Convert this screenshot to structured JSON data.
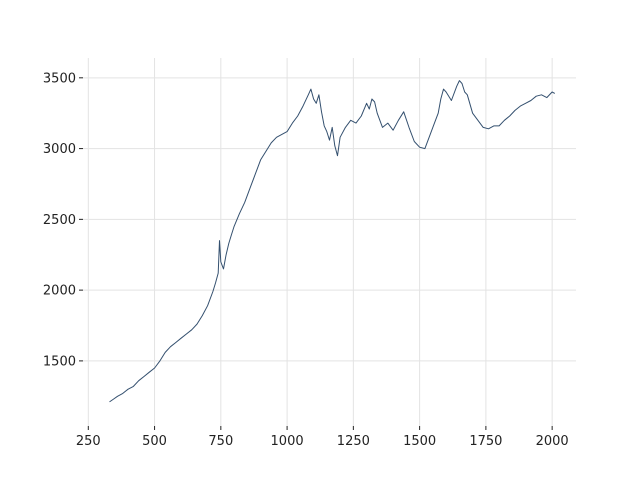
{
  "chart_data": {
    "type": "line",
    "title": "",
    "xlabel": "",
    "ylabel": "",
    "xlim": [
      230,
      2090
    ],
    "ylim": [
      1040,
      3640
    ],
    "grid": true,
    "x_ticks": [
      250,
      500,
      750,
      1000,
      1250,
      1500,
      1750,
      2000
    ],
    "y_ticks": [
      1500,
      2000,
      2500,
      3000,
      3500
    ],
    "x_tick_labels": [
      "250",
      "500",
      "750",
      "1000",
      "1250",
      "1500",
      "1750",
      "2000"
    ],
    "y_tick_labels": [
      "1500",
      "2000",
      "2500",
      "3000",
      "3500"
    ],
    "series": [
      {
        "color": "#34506f",
        "x": [
          330,
          345,
          360,
          380,
          400,
          420,
          440,
          460,
          480,
          500,
          520,
          540,
          560,
          580,
          600,
          620,
          640,
          660,
          680,
          700,
          720,
          730,
          740,
          745,
          750,
          760,
          770,
          780,
          790,
          800,
          820,
          840,
          860,
          880,
          900,
          920,
          940,
          960,
          980,
          1000,
          1020,
          1040,
          1060,
          1080,
          1090,
          1100,
          1110,
          1120,
          1130,
          1140,
          1150,
          1160,
          1170,
          1180,
          1190,
          1200,
          1220,
          1240,
          1260,
          1280,
          1300,
          1310,
          1320,
          1330,
          1340,
          1360,
          1380,
          1400,
          1420,
          1440,
          1460,
          1480,
          1500,
          1520,
          1540,
          1560,
          1570,
          1580,
          1590,
          1600,
          1620,
          1640,
          1650,
          1660,
          1670,
          1680,
          1700,
          1720,
          1740,
          1760,
          1780,
          1800,
          1820,
          1840,
          1860,
          1880,
          1900,
          1920,
          1940,
          1960,
          1980,
          2000,
          2010
        ],
        "y": [
          1210,
          1230,
          1250,
          1270,
          1300,
          1320,
          1360,
          1390,
          1420,
          1450,
          1500,
          1560,
          1600,
          1630,
          1660,
          1690,
          1720,
          1760,
          1820,
          1890,
          1990,
          2050,
          2120,
          2350,
          2200,
          2150,
          2250,
          2330,
          2390,
          2450,
          2540,
          2620,
          2720,
          2820,
          2920,
          2980,
          3040,
          3080,
          3100,
          3120,
          3180,
          3230,
          3300,
          3380,
          3420,
          3350,
          3320,
          3380,
          3260,
          3160,
          3120,
          3060,
          3150,
          3020,
          2950,
          3080,
          3150,
          3200,
          3180,
          3230,
          3320,
          3280,
          3350,
          3330,
          3250,
          3150,
          3180,
          3130,
          3200,
          3260,
          3150,
          3050,
          3010,
          3000,
          3100,
          3200,
          3250,
          3350,
          3420,
          3400,
          3340,
          3440,
          3480,
          3460,
          3400,
          3380,
          3250,
          3200,
          3150,
          3140,
          3160,
          3160,
          3200,
          3230,
          3270,
          3300,
          3320,
          3340,
          3370,
          3380,
          3360,
          3400,
          3390
        ]
      }
    ]
  }
}
